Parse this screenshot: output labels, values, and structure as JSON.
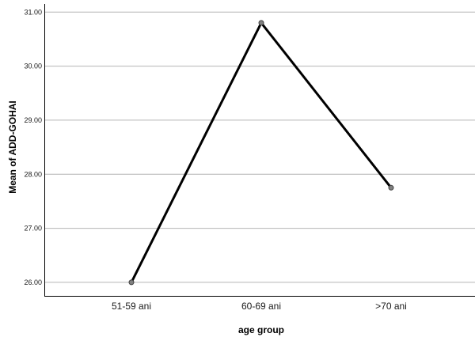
{
  "chart_data": {
    "type": "line",
    "title": "",
    "xlabel": "age group",
    "ylabel": "Mean of ADD-GOHAI",
    "categories": [
      "51-59 ani",
      "60-69 ani",
      ">70 ani"
    ],
    "series": [
      {
        "values": [
          26.0,
          30.8,
          27.75
        ]
      }
    ],
    "ylim": [
      25.75,
      31.15
    ],
    "yticks": [
      26.0,
      27.0,
      28.0,
      29.0,
      30.0,
      31.0
    ],
    "ytick_labels": [
      "26.00",
      "27.00",
      "28.00",
      "29.00",
      "30.00",
      "31.00"
    ],
    "grid": "horizontal",
    "legend": "none",
    "colors": {
      "line": "#000000",
      "marker_fill": "#808080",
      "marker_stroke": "#404040",
      "gridline": "#b4b4b4",
      "axis": "#000000"
    }
  }
}
